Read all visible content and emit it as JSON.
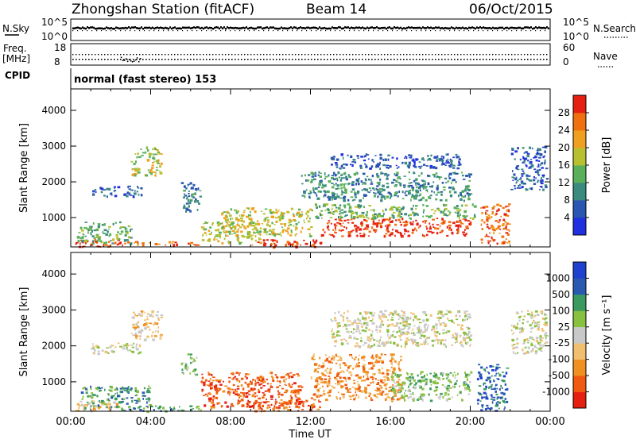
{
  "header": {
    "station": "Zhongshan Station (fitACF)",
    "beam": "Beam 14",
    "date": "06/Oct/2015"
  },
  "status_panels": {
    "nsky_label": "N.Sky",
    "nsky_ticks": [
      "10^5",
      "10^0"
    ],
    "nsearch_label": "N.Search",
    "nsearch_ticks": [
      "10^5",
      "10^0"
    ],
    "freq_label": "Freq.",
    "freq_unit": "[MHz]",
    "freq_ticks": [
      "18",
      "8"
    ],
    "nave_label": "Nave",
    "nave_ticks": [
      "60",
      "0"
    ],
    "cpid_label": "CPID",
    "cpid_text": "normal (fast stereo) 153"
  },
  "chart_data": [
    {
      "type": "heatmap",
      "panel": "power",
      "ylabel": "Slant Range [km]",
      "ylim": [
        180,
        4600
      ],
      "yticks": [
        "1000",
        "2000",
        "3000",
        "4000"
      ],
      "xlim_hours": [
        0,
        24
      ],
      "colorbar_label": "Power [dB]",
      "colorbar_ticks": [
        "4",
        "8",
        "12",
        "16",
        "20",
        "24",
        "28"
      ],
      "colorbar_colors": [
        "#2030e0",
        "#2a55b0",
        "#3a8a80",
        "#5ab05a",
        "#b8c030",
        "#f0a020",
        "#f07010",
        "#e52010"
      ],
      "blobs": [
        {
          "t0": 0.2,
          "t1": 2.4,
          "r0": 200,
          "r1": 420,
          "level": 7
        },
        {
          "t0": 0.3,
          "t1": 3.0,
          "r0": 300,
          "r1": 900,
          "level": 3
        },
        {
          "t0": 2.0,
          "t1": 6.5,
          "r0": 250,
          "r1": 350,
          "level": 6
        },
        {
          "t0": 3.0,
          "t1": 4.5,
          "r0": 2200,
          "r1": 3000,
          "level": 4
        },
        {
          "t0": 5.5,
          "t1": 6.5,
          "r0": 1200,
          "r1": 2000,
          "level": 2
        },
        {
          "t0": 1.0,
          "t1": 3.5,
          "r0": 1600,
          "r1": 1900,
          "level": 1
        },
        {
          "t0": 6.5,
          "t1": 9.5,
          "r0": 300,
          "r1": 900,
          "level": 4
        },
        {
          "t0": 7.5,
          "t1": 12.0,
          "r0": 500,
          "r1": 1300,
          "level": 4
        },
        {
          "t0": 9.0,
          "t1": 12.5,
          "r0": 200,
          "r1": 400,
          "level": 7
        },
        {
          "t0": 12.5,
          "t1": 20.0,
          "r0": 500,
          "r1": 1000,
          "level": 7
        },
        {
          "t0": 12.0,
          "t1": 20.2,
          "r0": 1000,
          "r1": 1400,
          "level": 3
        },
        {
          "t0": 13.0,
          "t1": 19.5,
          "r0": 2400,
          "r1": 2800,
          "level": 1
        },
        {
          "t0": 11.5,
          "t1": 20.0,
          "r0": 1500,
          "r1": 2300,
          "level": 2
        },
        {
          "t0": 20.5,
          "t1": 22.0,
          "r0": 300,
          "r1": 1400,
          "level": 6
        },
        {
          "t0": 22.0,
          "t1": 23.8,
          "r0": 1800,
          "r1": 3000,
          "level": 1
        }
      ]
    },
    {
      "type": "heatmap",
      "panel": "velocity",
      "ylabel": "Slant Range [km]",
      "ylim": [
        180,
        4600
      ],
      "yticks": [
        "1000",
        "2000",
        "3000",
        "4000"
      ],
      "xlim_hours": [
        0,
        24
      ],
      "xticks": [
        "00:00",
        "04:00",
        "08:00",
        "12:00",
        "16:00",
        "20:00",
        "00:00"
      ],
      "xlabel": "Time UT",
      "colorbar_label": "Velocity [m s⁻¹]",
      "colorbar_ticks": [
        "-1000",
        "-500",
        "-100",
        "-25",
        "25",
        "100",
        "500",
        "1000"
      ],
      "colorbar_colors": [
        "#e52010",
        "#f05a10",
        "#f09020",
        "#f0c070",
        "#c8c8c8",
        "#88c040",
        "#3a9a60",
        "#2a5ab0",
        "#2040d0"
      ],
      "blobs": [
        {
          "t0": 0.2,
          "t1": 2.5,
          "r0": 200,
          "r1": 500,
          "level": 3
        },
        {
          "t0": 0.5,
          "t1": 4.0,
          "r0": 300,
          "r1": 900,
          "level": 6
        },
        {
          "t0": 2.5,
          "t1": 6.5,
          "r0": 200,
          "r1": 350,
          "level": 6
        },
        {
          "t0": 3.0,
          "t1": 4.5,
          "r0": 2200,
          "r1": 3000,
          "level": 3
        },
        {
          "t0": 5.5,
          "t1": 6.3,
          "r0": 1200,
          "r1": 1800,
          "level": 5
        },
        {
          "t0": 1.0,
          "t1": 3.5,
          "r0": 1800,
          "r1": 2100,
          "level": 4
        },
        {
          "t0": 6.5,
          "t1": 11.5,
          "r0": 300,
          "r1": 1300,
          "level": 1
        },
        {
          "t0": 9.0,
          "t1": 12.5,
          "r0": 200,
          "r1": 500,
          "level": 1
        },
        {
          "t0": 12.0,
          "t1": 16.5,
          "r0": 500,
          "r1": 1800,
          "level": 2
        },
        {
          "t0": 16.0,
          "t1": 20.0,
          "r0": 500,
          "r1": 1300,
          "level": 5
        },
        {
          "t0": 13.0,
          "t1": 20.0,
          "r0": 2000,
          "r1": 3000,
          "level": 4
        },
        {
          "t0": 20.3,
          "t1": 21.8,
          "r0": 200,
          "r1": 1500,
          "level": 7
        },
        {
          "t0": 22.0,
          "t1": 23.8,
          "r0": 1800,
          "r1": 3000,
          "level": 4
        }
      ]
    }
  ]
}
